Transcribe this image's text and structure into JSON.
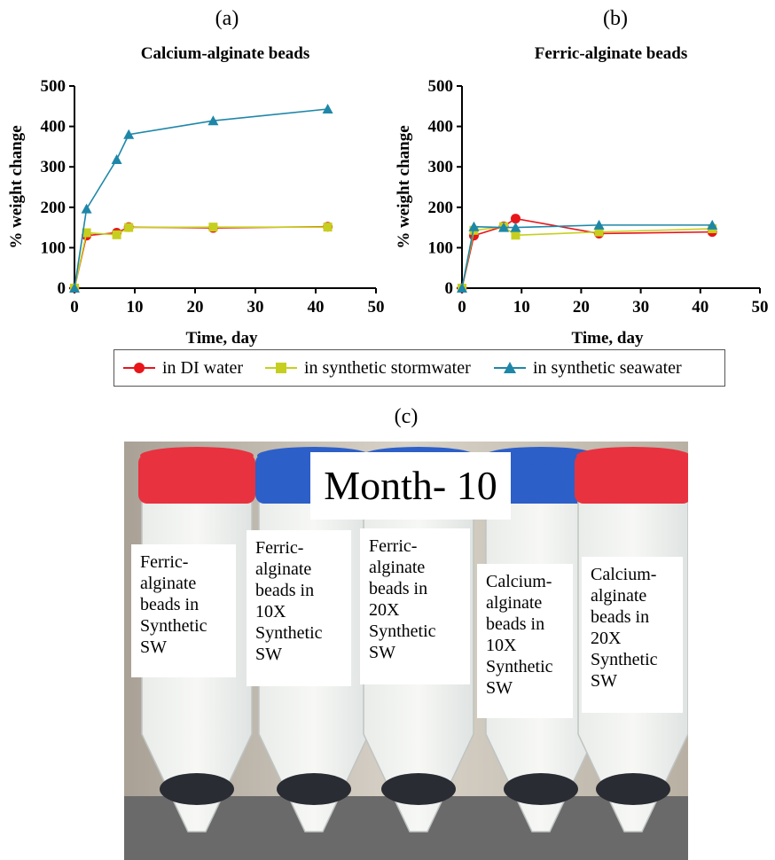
{
  "panels": {
    "a_label": "(a)",
    "b_label": "(b)",
    "c_label": "(c)"
  },
  "legend": {
    "items": [
      {
        "label": "in DI water",
        "color": "#e8151b",
        "marker": "circle"
      },
      {
        "label": "in synthetic stormwater",
        "color": "#c6cf1f",
        "marker": "square"
      },
      {
        "label": "in synthetic seawater",
        "color": "#1e87a8",
        "marker": "triangle"
      }
    ]
  },
  "photo": {
    "title": "Month- 10",
    "tube_labels": [
      "Ferric-\nalginate\nbeads in\nSynthetic\nSW",
      "Ferric-\nalginate\nbeads in\n10X\nSynthetic\nSW",
      "Ferric-\nalginate\nbeads in\n20X\nSynthetic\nSW",
      "Calcium-\nalginate\nbeads in\n10X\nSynthetic\nSW",
      "Calcium-\nalginate\nbeads in\n20X\nSynthetic\nSW"
    ],
    "cap_colors": [
      "#e8323f",
      "#2d5fc8",
      "#2d5fc8",
      "#2d5fc8",
      "#e8323f"
    ]
  },
  "chart_data": [
    {
      "type": "line",
      "title": "Calcium-alginate beads",
      "xlabel": "Time, day",
      "ylabel": "% weight change",
      "xlim": [
        0,
        50
      ],
      "ylim": [
        0,
        500
      ],
      "xticks": [
        0,
        10,
        20,
        30,
        40,
        50
      ],
      "yticks": [
        0,
        100,
        200,
        300,
        400,
        500
      ],
      "series": [
        {
          "name": "in DI water",
          "x": [
            0,
            2,
            7,
            9,
            23,
            42
          ],
          "values": [
            0,
            130,
            137,
            151,
            149,
            152
          ]
        },
        {
          "name": "in synthetic stormwater",
          "x": [
            0,
            2,
            7,
            9,
            23,
            42
          ],
          "values": [
            0,
            137,
            132,
            150,
            151,
            151
          ]
        },
        {
          "name": "in synthetic seawater",
          "x": [
            0,
            2,
            7,
            9,
            23,
            42
          ],
          "values": [
            0,
            196,
            318,
            380,
            414,
            443
          ]
        }
      ]
    },
    {
      "type": "line",
      "title": "Ferric-alginate beads",
      "xlabel": "Time, day",
      "ylabel": "% weight change",
      "xlim": [
        0,
        50
      ],
      "ylim": [
        0,
        500
      ],
      "xticks": [
        0,
        10,
        20,
        30,
        40,
        50
      ],
      "yticks": [
        0,
        100,
        200,
        300,
        400,
        500
      ],
      "series": [
        {
          "name": "in DI water",
          "x": [
            0,
            2,
            7,
            9,
            23,
            42
          ],
          "values": [
            0,
            130,
            153,
            172,
            135,
            139
          ]
        },
        {
          "name": "in synthetic stormwater",
          "x": [
            0,
            2,
            7,
            9,
            23,
            42
          ],
          "values": [
            0,
            143,
            152,
            131,
            139,
            147
          ]
        },
        {
          "name": "in synthetic seawater",
          "x": [
            0,
            2,
            7,
            9,
            23,
            42
          ],
          "values": [
            0,
            152,
            150,
            150,
            156,
            156
          ]
        }
      ]
    }
  ]
}
